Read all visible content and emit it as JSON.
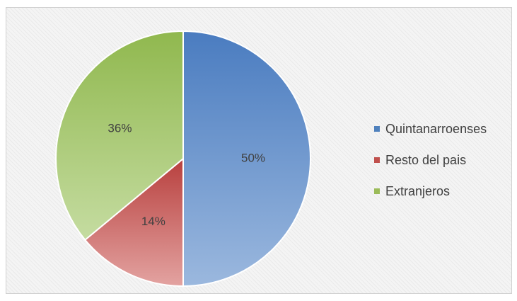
{
  "chart_data": {
    "type": "pie",
    "title": "",
    "categories": [
      "Quintanarroenses",
      "Resto del pais",
      "Extranjeros"
    ],
    "values": [
      50,
      14,
      36
    ],
    "data_labels": [
      "50%",
      "14%",
      "36%"
    ],
    "colors": [
      "#4f81bd",
      "#c0504d",
      "#9bbb59"
    ],
    "start_angle_deg": 0,
    "direction": "clockwise",
    "legend_placement": "right"
  },
  "legend": {
    "items": [
      {
        "label": "Quintanarroenses",
        "color": "#4f81bd"
      },
      {
        "label": "Resto del pais",
        "color": "#c0504d"
      },
      {
        "label": "Extranjeros",
        "color": "#9bbb59"
      }
    ]
  }
}
